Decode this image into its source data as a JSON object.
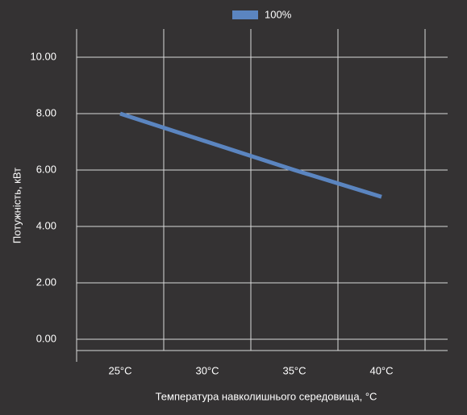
{
  "chart_data": {
    "type": "line",
    "legend": "top",
    "categories": [
      "25°C",
      "30°C",
      "35°C",
      "40°C"
    ],
    "series": [
      {
        "name": "100%",
        "color": "#5b85c0",
        "values": [
          8.0,
          7.0,
          6.0,
          5.05
        ]
      }
    ],
    "ylabel": "Потужність, кВт",
    "xlabel": "Температура навколишнього середовища, °C",
    "ylim": [
      -0.4,
      11
    ],
    "yticks": [
      {
        "value": 0,
        "label": "0.00"
      },
      {
        "value": 2,
        "label": "2.00"
      },
      {
        "value": 4,
        "label": "4.00"
      },
      {
        "value": 6,
        "label": "6.00"
      },
      {
        "value": 8,
        "label": "8.00"
      },
      {
        "value": 10,
        "label": "10.00"
      }
    ],
    "grid": true
  }
}
